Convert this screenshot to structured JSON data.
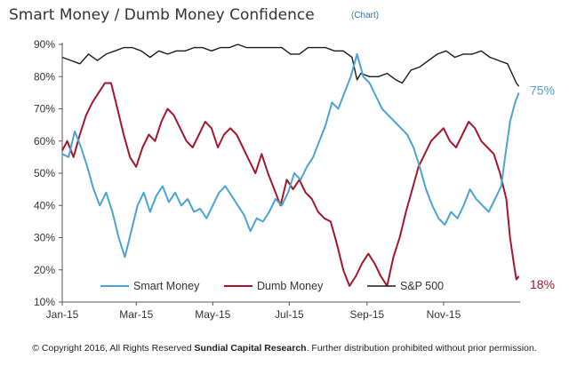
{
  "title": "Smart Money / Dumb Money Confidence",
  "chart_link": "(Chart)",
  "footer": {
    "prefix": "© Copyright 2016, All Rights Reserved ",
    "company": "Sundial Capital Research",
    "suffix": ". Further distribution prohibited without prior permission."
  },
  "colors": {
    "smart_money": "#4aa3d6",
    "dumb_money": "#a3172a",
    "sp500": "#1a1a1a",
    "axis": "#555555",
    "link": "#2e74b5"
  },
  "chart_data": {
    "type": "line",
    "title": "Smart Money / Dumb Money Confidence",
    "xlabel": "",
    "ylabel": "",
    "xlim": [
      "2015-01-01",
      "2016-01-01"
    ],
    "ylim": [
      10,
      90
    ],
    "x_ticks": [
      "Jan-15",
      "Mar-15",
      "May-15",
      "Jul-15",
      "Sep-15",
      "Nov-15"
    ],
    "y_ticks": [
      "10%",
      "20%",
      "30%",
      "40%",
      "50%",
      "60%",
      "70%",
      "80%",
      "90%"
    ],
    "grid": false,
    "legend_placement": "bottom",
    "series": [
      {
        "name": "Smart Money",
        "key": "smart_money",
        "end_label": "75%",
        "points": [
          [
            "2015-01-01",
            56
          ],
          [
            "2015-01-06",
            55
          ],
          [
            "2015-01-11",
            63
          ],
          [
            "2015-01-16",
            58
          ],
          [
            "2015-01-21",
            52
          ],
          [
            "2015-01-26",
            45
          ],
          [
            "2015-01-31",
            40
          ],
          [
            "2015-02-05",
            44
          ],
          [
            "2015-02-10",
            38
          ],
          [
            "2015-02-15",
            30
          ],
          [
            "2015-02-20",
            24
          ],
          [
            "2015-02-25",
            32
          ],
          [
            "2015-03-02",
            40
          ],
          [
            "2015-03-07",
            44
          ],
          [
            "2015-03-12",
            38
          ],
          [
            "2015-03-17",
            43
          ],
          [
            "2015-03-22",
            46
          ],
          [
            "2015-03-27",
            41
          ],
          [
            "2015-04-01",
            44
          ],
          [
            "2015-04-06",
            40
          ],
          [
            "2015-04-11",
            42
          ],
          [
            "2015-04-16",
            38
          ],
          [
            "2015-04-21",
            39
          ],
          [
            "2015-04-26",
            36
          ],
          [
            "2015-05-01",
            40
          ],
          [
            "2015-05-06",
            44
          ],
          [
            "2015-05-11",
            46
          ],
          [
            "2015-05-16",
            43
          ],
          [
            "2015-05-21",
            40
          ],
          [
            "2015-05-26",
            37
          ],
          [
            "2015-05-31",
            32
          ],
          [
            "2015-06-05",
            36
          ],
          [
            "2015-06-10",
            35
          ],
          [
            "2015-06-15",
            38
          ],
          [
            "2015-06-20",
            42
          ],
          [
            "2015-06-25",
            40
          ],
          [
            "2015-06-30",
            44
          ],
          [
            "2015-07-05",
            50
          ],
          [
            "2015-07-10",
            48
          ],
          [
            "2015-07-15",
            52
          ],
          [
            "2015-07-20",
            55
          ],
          [
            "2015-07-25",
            60
          ],
          [
            "2015-07-30",
            65
          ],
          [
            "2015-08-04",
            72
          ],
          [
            "2015-08-09",
            70
          ],
          [
            "2015-08-14",
            75
          ],
          [
            "2015-08-19",
            80
          ],
          [
            "2015-08-24",
            87
          ],
          [
            "2015-08-29",
            80
          ],
          [
            "2015-09-03",
            78
          ],
          [
            "2015-09-08",
            74
          ],
          [
            "2015-09-13",
            70
          ],
          [
            "2015-09-18",
            68
          ],
          [
            "2015-09-23",
            66
          ],
          [
            "2015-09-28",
            64
          ],
          [
            "2015-10-03",
            62
          ],
          [
            "2015-10-08",
            58
          ],
          [
            "2015-10-13",
            52
          ],
          [
            "2015-10-18",
            45
          ],
          [
            "2015-10-23",
            40
          ],
          [
            "2015-10-28",
            36
          ],
          [
            "2015-11-02",
            34
          ],
          [
            "2015-11-07",
            38
          ],
          [
            "2015-11-12",
            36
          ],
          [
            "2015-11-17",
            40
          ],
          [
            "2015-11-22",
            45
          ],
          [
            "2015-11-27",
            42
          ],
          [
            "2015-12-02",
            40
          ],
          [
            "2015-12-07",
            38
          ],
          [
            "2015-12-12",
            42
          ],
          [
            "2015-12-17",
            46
          ],
          [
            "2015-12-20",
            55
          ],
          [
            "2015-12-24",
            66
          ],
          [
            "2015-12-28",
            72
          ],
          [
            "2015-12-31",
            75
          ]
        ]
      },
      {
        "name": "Dumb Money",
        "key": "dumb_money",
        "end_label": "18%",
        "points": [
          [
            "2015-01-01",
            57
          ],
          [
            "2015-01-05",
            60
          ],
          [
            "2015-01-10",
            55
          ],
          [
            "2015-01-15",
            62
          ],
          [
            "2015-01-20",
            68
          ],
          [
            "2015-01-25",
            72
          ],
          [
            "2015-01-30",
            75
          ],
          [
            "2015-02-04",
            78
          ],
          [
            "2015-02-09",
            78
          ],
          [
            "2015-02-14",
            70
          ],
          [
            "2015-02-19",
            62
          ],
          [
            "2015-02-24",
            55
          ],
          [
            "2015-03-01",
            52
          ],
          [
            "2015-03-06",
            58
          ],
          [
            "2015-03-11",
            62
          ],
          [
            "2015-03-16",
            60
          ],
          [
            "2015-03-21",
            66
          ],
          [
            "2015-03-26",
            70
          ],
          [
            "2015-03-31",
            68
          ],
          [
            "2015-04-05",
            64
          ],
          [
            "2015-04-10",
            60
          ],
          [
            "2015-04-15",
            58
          ],
          [
            "2015-04-20",
            62
          ],
          [
            "2015-04-25",
            66
          ],
          [
            "2015-04-30",
            64
          ],
          [
            "2015-05-05",
            58
          ],
          [
            "2015-05-10",
            62
          ],
          [
            "2015-05-15",
            64
          ],
          [
            "2015-05-20",
            62
          ],
          [
            "2015-05-25",
            58
          ],
          [
            "2015-05-30",
            54
          ],
          [
            "2015-06-04",
            50
          ],
          [
            "2015-06-09",
            56
          ],
          [
            "2015-06-14",
            50
          ],
          [
            "2015-06-19",
            45
          ],
          [
            "2015-06-24",
            40
          ],
          [
            "2015-06-29",
            48
          ],
          [
            "2015-07-04",
            45
          ],
          [
            "2015-07-09",
            48
          ],
          [
            "2015-07-14",
            44
          ],
          [
            "2015-07-19",
            42
          ],
          [
            "2015-07-24",
            38
          ],
          [
            "2015-07-29",
            36
          ],
          [
            "2015-08-03",
            35
          ],
          [
            "2015-08-08",
            28
          ],
          [
            "2015-08-13",
            20
          ],
          [
            "2015-08-18",
            15
          ],
          [
            "2015-08-23",
            18
          ],
          [
            "2015-08-28",
            22
          ],
          [
            "2015-09-02",
            25
          ],
          [
            "2015-09-07",
            22
          ],
          [
            "2015-09-12",
            18
          ],
          [
            "2015-09-17",
            15
          ],
          [
            "2015-09-22",
            24
          ],
          [
            "2015-09-27",
            30
          ],
          [
            "2015-10-02",
            38
          ],
          [
            "2015-10-07",
            45
          ],
          [
            "2015-10-12",
            52
          ],
          [
            "2015-10-17",
            56
          ],
          [
            "2015-10-22",
            60
          ],
          [
            "2015-10-27",
            62
          ],
          [
            "2015-11-01",
            64
          ],
          [
            "2015-11-06",
            60
          ],
          [
            "2015-11-11",
            58
          ],
          [
            "2015-11-16",
            62
          ],
          [
            "2015-11-21",
            66
          ],
          [
            "2015-11-26",
            64
          ],
          [
            "2015-12-01",
            60
          ],
          [
            "2015-12-06",
            58
          ],
          [
            "2015-12-11",
            56
          ],
          [
            "2015-12-16",
            50
          ],
          [
            "2015-12-21",
            42
          ],
          [
            "2015-12-24",
            30
          ],
          [
            "2015-12-27",
            22
          ],
          [
            "2015-12-29",
            17
          ],
          [
            "2015-12-31",
            18
          ]
        ]
      },
      {
        "name": "S&P 500",
        "key": "sp500",
        "points": [
          [
            "2015-01-01",
            86
          ],
          [
            "2015-01-08",
            85
          ],
          [
            "2015-01-15",
            84
          ],
          [
            "2015-01-22",
            87
          ],
          [
            "2015-01-29",
            85
          ],
          [
            "2015-02-05",
            87
          ],
          [
            "2015-02-12",
            88
          ],
          [
            "2015-02-19",
            89
          ],
          [
            "2015-02-26",
            89
          ],
          [
            "2015-03-05",
            88
          ],
          [
            "2015-03-12",
            86
          ],
          [
            "2015-03-19",
            88
          ],
          [
            "2015-03-26",
            87
          ],
          [
            "2015-04-02",
            88
          ],
          [
            "2015-04-09",
            88
          ],
          [
            "2015-04-16",
            89
          ],
          [
            "2015-04-23",
            89
          ],
          [
            "2015-04-30",
            88
          ],
          [
            "2015-05-07",
            89
          ],
          [
            "2015-05-14",
            89
          ],
          [
            "2015-05-21",
            90
          ],
          [
            "2015-05-28",
            89
          ],
          [
            "2015-06-04",
            89
          ],
          [
            "2015-06-11",
            89
          ],
          [
            "2015-06-18",
            89
          ],
          [
            "2015-06-25",
            89
          ],
          [
            "2015-07-02",
            87
          ],
          [
            "2015-07-09",
            87
          ],
          [
            "2015-07-16",
            89
          ],
          [
            "2015-07-23",
            89
          ],
          [
            "2015-07-30",
            89
          ],
          [
            "2015-08-06",
            88
          ],
          [
            "2015-08-13",
            88
          ],
          [
            "2015-08-20",
            86
          ],
          [
            "2015-08-24",
            79
          ],
          [
            "2015-08-27",
            81
          ],
          [
            "2015-09-03",
            80
          ],
          [
            "2015-09-10",
            80
          ],
          [
            "2015-09-17",
            81
          ],
          [
            "2015-09-24",
            79
          ],
          [
            "2015-09-29",
            78
          ],
          [
            "2015-10-06",
            82
          ],
          [
            "2015-10-13",
            83
          ],
          [
            "2015-10-20",
            85
          ],
          [
            "2015-10-27",
            87
          ],
          [
            "2015-11-03",
            88
          ],
          [
            "2015-11-10",
            86
          ],
          [
            "2015-11-17",
            87
          ],
          [
            "2015-11-24",
            87
          ],
          [
            "2015-12-01",
            88
          ],
          [
            "2015-12-08",
            86
          ],
          [
            "2015-12-15",
            85
          ],
          [
            "2015-12-22",
            84
          ],
          [
            "2015-12-29",
            78
          ],
          [
            "2015-12-31",
            77
          ]
        ]
      }
    ]
  }
}
